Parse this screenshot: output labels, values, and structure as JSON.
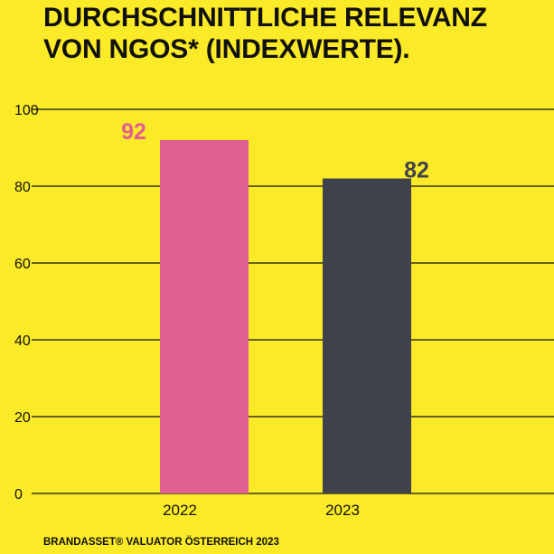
{
  "header": {
    "title_line1": "DURCHSCHNITTLICHE RELEVANZ",
    "title_line2": "VON NGOS* (INDEXWERTE)."
  },
  "footer": {
    "source": "BRANDASSET®  VALUATOR ÖSTERREICH 2023"
  },
  "colors": {
    "background": "#FBEA27",
    "bar_2022": "#E0608F",
    "bar_2023": "#40434B",
    "label_2022": "#E0608F",
    "label_2023": "#40434B",
    "text": "#111111"
  },
  "chart_data": {
    "type": "bar",
    "title": "DURCHSCHNITTLICHE RELEVANZ VON NGOS* (INDEXWERTE).",
    "categories": [
      "2022",
      "2023"
    ],
    "values": [
      92,
      82
    ],
    "value_labels": [
      "92",
      "82"
    ],
    "yticks": [
      0,
      20,
      40,
      60,
      80,
      100
    ],
    "ylim": [
      0,
      100
    ],
    "xlabel": "",
    "ylabel": "",
    "grid": true
  }
}
